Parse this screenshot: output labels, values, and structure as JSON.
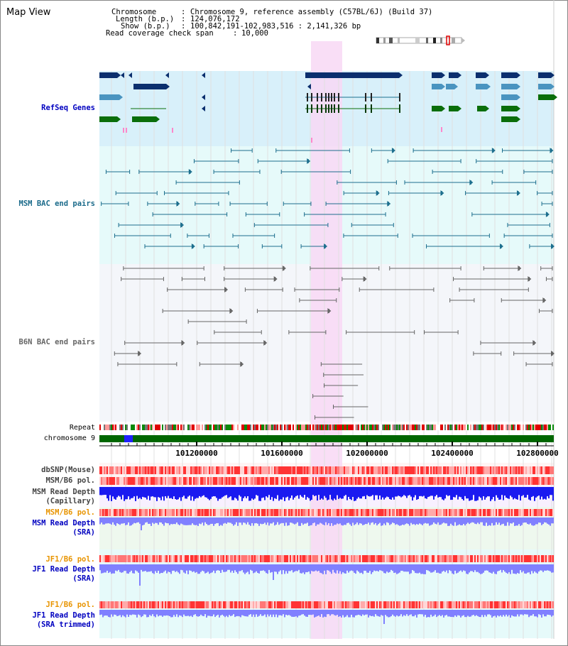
{
  "view_title": "Map View",
  "header": {
    "chromosome_label": "Chromosome",
    "chromosome_value": "Chromosome 9, reference assembly (C57BL/6J) (Build 37)",
    "length_label": "Length (b.p.)",
    "length_value": "124,076,172",
    "show_label": "Show (b.p.)",
    "show_value": "100,842,191-102,983,516 : 2,141,326 bp",
    "coverage_label": "Read coverage check span",
    "coverage_value": "10,000"
  },
  "tracks": {
    "refseq": "RefSeq Genes",
    "msm_bac": "MSM BAC end pairs",
    "b6n_bac": "B6N BAC end pairs",
    "repeat": "Repeat",
    "chromosome": "chromosome 9",
    "dbsnp": "dbSNP(Mouse)",
    "msm_b6_pol_1": "MSM/B6 pol.",
    "msm_read_depth_cap_1": "MSM Read Depth",
    "msm_read_depth_cap_2": "(Capillary)",
    "msm_b6_pol_2": "MSM/B6 pol.",
    "msm_read_depth_sra_1": "MSM Read Depth",
    "msm_read_depth_sra_2": "(SRA)",
    "jf1_b6_pol_1": "JF1/B6 pol.",
    "jf1_read_depth_sra_1": "JF1 Read Depth",
    "jf1_read_depth_sra_2": "(SRA)",
    "jf1_b6_pol_2": "JF1/B6 pol.",
    "jf1_read_depth_trim_1": "JF1 Read Depth",
    "jf1_read_depth_trim_2": "(SRA trimmed)"
  },
  "coordinates": [
    "101200000",
    "101600000",
    "102000000",
    "102400000",
    "102800000"
  ],
  "colors": {
    "refseq_bg": "#d8f0fa",
    "msm_bg": "#e6fafa",
    "b6n_bg": "#f4f6fa",
    "highlight": "#f8d8f4",
    "refseq_dark": "#0b2f6e",
    "refseq_mid": "#4a94c0",
    "refseq_green": "#0a6e0a",
    "msm_pair": "#1d6f8e",
    "b6n_pair": "#666666",
    "snp": "#ff3333",
    "depth_blue": "#1a1af0",
    "depth_light": "#8080ff",
    "label_blue": "#0000c0",
    "label_orange": "#e89400",
    "label_teal": "#1a6a8a"
  }
}
